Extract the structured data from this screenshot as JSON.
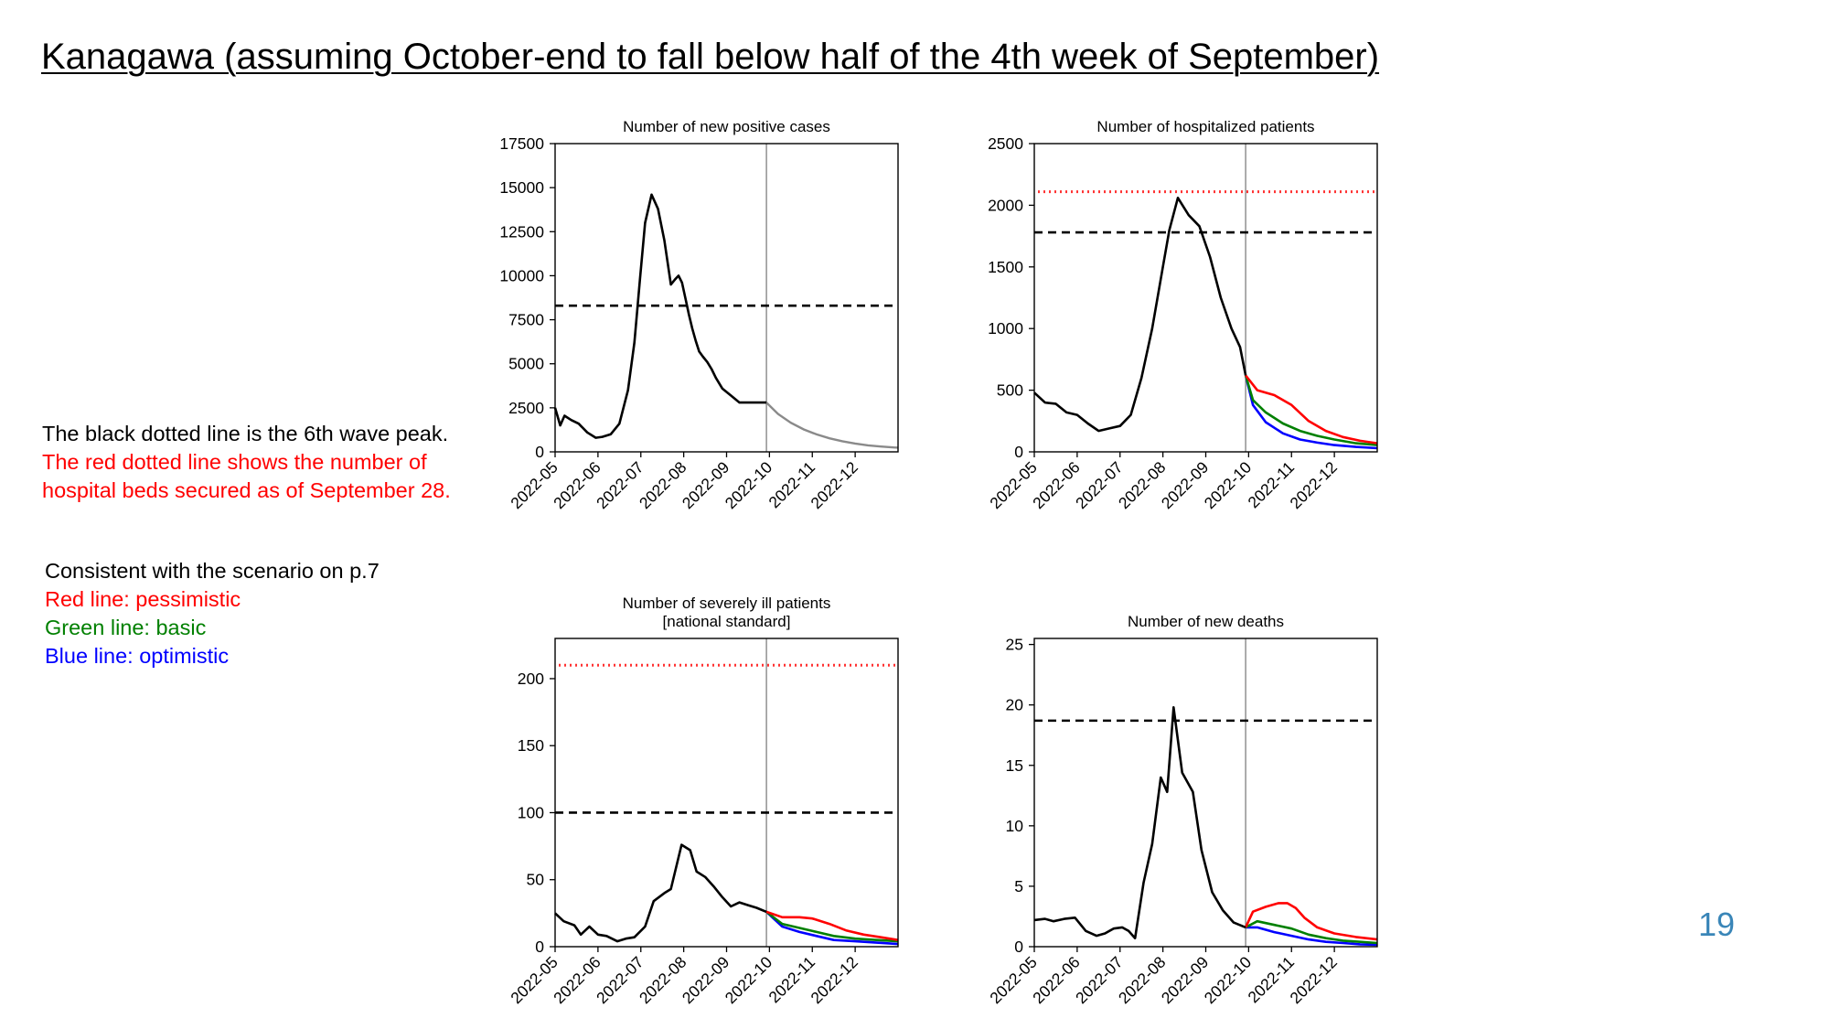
{
  "title": "Kanagawa (assuming October-end to fall below half of the 4th week of September)",
  "notes": [
    {
      "text": "The black dotted line is the 6th wave peak.",
      "color": "#000000"
    },
    {
      "text": "The red dotted line shows the number of",
      "color": "#ff0000"
    },
    {
      "text": "hospital beds secured as of September 28.",
      "color": "#ff0000"
    }
  ],
  "scenario_notes": [
    {
      "text": "Consistent with the scenario on p.7",
      "color": "#000000"
    },
    {
      "text": "Red line: pessimistic",
      "color": "#ff0000"
    },
    {
      "text": "Green line: basic",
      "color": "#008000"
    },
    {
      "text": "Blue line: optimistic",
      "color": "#0000ff"
    }
  ],
  "page_number": "19",
  "colors": {
    "observed": "#000000",
    "projection_single": "#8a8a8a",
    "pessimistic": "#ff0000",
    "basic": "#008000",
    "optimistic": "#0000ff",
    "sixth_wave_peak": "#000000",
    "hospital_beds": "#ff3333",
    "current_date_line": "#808080"
  },
  "chart_data": [
    {
      "id": "new-positive-cases",
      "type": "line",
      "title": [
        "Number of new positive cases"
      ],
      "xlim": [
        0,
        8
      ],
      "x_ticks": [
        "2022-05",
        "2022-06",
        "2022-07",
        "2022-08",
        "2022-09",
        "2022-10",
        "2022-11",
        "2022-12"
      ],
      "ylim": [
        0,
        17500
      ],
      "y_ticks": [
        0,
        2500,
        5000,
        7500,
        10000,
        12500,
        15000,
        17500
      ],
      "vline_x": 4.93,
      "hlines": [
        {
          "y": 8300,
          "style": "dashed",
          "meaning": "6th wave peak"
        }
      ],
      "observed": {
        "x": [
          0,
          0.12,
          0.22,
          0.38,
          0.55,
          0.75,
          0.95,
          1.1,
          1.3,
          1.5,
          1.7,
          1.85,
          1.98,
          2.1,
          2.25,
          2.4,
          2.55,
          2.7,
          2.8,
          2.88,
          2.96,
          3.05,
          3.12,
          3.2,
          3.28,
          3.36,
          3.45,
          3.55,
          3.65,
          3.75,
          3.9,
          4.1,
          4.3,
          4.5,
          4.65,
          4.8,
          4.93
        ],
        "y": [
          2500,
          1500,
          2050,
          1800,
          1600,
          1100,
          800,
          850,
          1000,
          1600,
          3500,
          6200,
          9800,
          13000,
          14600,
          13800,
          12000,
          9500,
          9800,
          10000,
          9600,
          8600,
          7800,
          7000,
          6300,
          5700,
          5400,
          5100,
          4700,
          4200,
          3600,
          3200,
          2800,
          2800,
          2800,
          2800,
          2800
        ]
      },
      "projection": {
        "x": [
          4.93,
          5.2,
          5.5,
          5.8,
          6.1,
          6.4,
          6.7,
          7.0,
          7.3,
          7.6,
          7.9,
          8.0
        ],
        "y": [
          2800,
          2150,
          1650,
          1270,
          990,
          770,
          600,
          470,
          370,
          300,
          250,
          240
        ]
      }
    },
    {
      "id": "hospitalized-patients",
      "type": "line",
      "title": [
        "Number of hospitalized patients"
      ],
      "xlim": [
        0,
        8
      ],
      "x_ticks": [
        "2022-05",
        "2022-06",
        "2022-07",
        "2022-08",
        "2022-09",
        "2022-10",
        "2022-11",
        "2022-12"
      ],
      "ylim": [
        0,
        2500
      ],
      "y_ticks": [
        0,
        500,
        1000,
        1500,
        2000,
        2500
      ],
      "vline_x": 4.93,
      "hlines": [
        {
          "y": 2110,
          "style": "dotted-red",
          "meaning": "hospital beds secured"
        },
        {
          "y": 1780,
          "style": "dashed",
          "meaning": "6th wave peak"
        }
      ],
      "observed": {
        "x": [
          0,
          0.25,
          0.5,
          0.75,
          1.0,
          1.25,
          1.5,
          1.75,
          2.0,
          2.25,
          2.5,
          2.75,
          3.0,
          3.15,
          3.35,
          3.6,
          3.85,
          4.1,
          4.35,
          4.6,
          4.8,
          4.93
        ],
        "y": [
          480,
          400,
          390,
          320,
          300,
          230,
          170,
          190,
          210,
          300,
          600,
          1000,
          1500,
          1800,
          2060,
          1920,
          1830,
          1580,
          1250,
          1000,
          850,
          620
        ]
      },
      "scenarios": [
        {
          "name": "pessimistic",
          "x": [
            4.93,
            5.2,
            5.6,
            6.0,
            6.4,
            6.8,
            7.2,
            7.6,
            8.0
          ],
          "y": [
            620,
            500,
            460,
            380,
            250,
            170,
            120,
            90,
            70
          ]
        },
        {
          "name": "basic",
          "x": [
            4.93,
            5.1,
            5.4,
            5.8,
            6.2,
            6.6,
            7.0,
            7.5,
            8.0
          ],
          "y": [
            620,
            420,
            320,
            230,
            170,
            130,
            100,
            70,
            55
          ]
        },
        {
          "name": "optimistic",
          "x": [
            4.93,
            5.1,
            5.4,
            5.8,
            6.2,
            6.6,
            7.0,
            7.5,
            8.0
          ],
          "y": [
            620,
            380,
            240,
            150,
            100,
            75,
            55,
            40,
            30
          ]
        }
      ]
    },
    {
      "id": "severely-ill-patients",
      "type": "line",
      "title": [
        "Number of severely ill patients",
        "[national standard]"
      ],
      "xlim": [
        0,
        8
      ],
      "x_ticks": [
        "2022-05",
        "2022-06",
        "2022-07",
        "2022-08",
        "2022-09",
        "2022-10",
        "2022-11",
        "2022-12"
      ],
      "ylim": [
        0,
        230
      ],
      "y_ticks": [
        0,
        50,
        100,
        150,
        200
      ],
      "vline_x": 4.93,
      "hlines": [
        {
          "y": 210,
          "style": "dotted-red",
          "meaning": "hospital beds secured"
        },
        {
          "y": 100,
          "style": "dashed",
          "meaning": "6th wave peak"
        }
      ],
      "observed": {
        "x": [
          0,
          0.2,
          0.45,
          0.6,
          0.8,
          1.0,
          1.2,
          1.45,
          1.65,
          1.85,
          2.1,
          2.3,
          2.55,
          2.7,
          2.95,
          3.15,
          3.3,
          3.5,
          3.7,
          3.9,
          4.1,
          4.3,
          4.5,
          4.7,
          4.93
        ],
        "y": [
          25,
          19,
          16,
          9,
          15,
          9,
          8,
          4,
          6,
          7,
          15,
          34,
          40,
          43,
          76,
          72,
          56,
          52,
          45,
          37,
          30,
          33,
          31,
          29,
          26
        ]
      },
      "scenarios": [
        {
          "name": "pessimistic",
          "x": [
            4.93,
            5.3,
            5.7,
            6.0,
            6.4,
            6.8,
            7.2,
            7.6,
            8.0
          ],
          "y": [
            26,
            22,
            22,
            21,
            17,
            12,
            9,
            7,
            5
          ]
        },
        {
          "name": "basic",
          "x": [
            4.93,
            5.3,
            5.7,
            6.1,
            6.5,
            7.0,
            7.5,
            8.0
          ],
          "y": [
            26,
            17,
            14,
            11,
            8,
            6,
            5,
            4
          ]
        },
        {
          "name": "optimistic",
          "x": [
            4.93,
            5.3,
            5.7,
            6.1,
            6.5,
            7.0,
            7.5,
            8.0
          ],
          "y": [
            26,
            15,
            11,
            8,
            5,
            4,
            3,
            2
          ]
        }
      ]
    },
    {
      "id": "new-deaths",
      "type": "line",
      "title": [
        "Number of new deaths"
      ],
      "xlim": [
        0,
        8
      ],
      "x_ticks": [
        "2022-05",
        "2022-06",
        "2022-07",
        "2022-08",
        "2022-09",
        "2022-10",
        "2022-11",
        "2022-12"
      ],
      "ylim": [
        0,
        25.5
      ],
      "y_ticks": [
        0,
        5,
        10,
        15,
        20,
        25
      ],
      "vline_x": 4.93,
      "hlines": [
        {
          "y": 18.7,
          "style": "dashed",
          "meaning": "6th wave peak"
        }
      ],
      "observed": {
        "x": [
          0,
          0.25,
          0.45,
          0.7,
          0.95,
          1.2,
          1.45,
          1.65,
          1.85,
          2.05,
          2.2,
          2.35,
          2.55,
          2.75,
          2.95,
          3.1,
          3.25,
          3.45,
          3.7,
          3.9,
          4.15,
          4.4,
          4.65,
          4.93
        ],
        "y": [
          2.2,
          2.3,
          2.1,
          2.3,
          2.4,
          1.3,
          0.9,
          1.1,
          1.5,
          1.6,
          1.3,
          0.7,
          5.3,
          8.5,
          14.0,
          12.8,
          19.8,
          14.4,
          12.8,
          8.0,
          4.5,
          3.0,
          2.0,
          1.6
        ]
      },
      "scenarios": [
        {
          "name": "pessimistic",
          "x": [
            4.93,
            5.1,
            5.4,
            5.7,
            5.9,
            6.1,
            6.3,
            6.6,
            7.0,
            7.5,
            8.0
          ],
          "y": [
            1.6,
            2.9,
            3.3,
            3.6,
            3.6,
            3.2,
            2.4,
            1.6,
            1.1,
            0.8,
            0.6
          ]
        },
        {
          "name": "basic",
          "x": [
            4.93,
            5.2,
            5.6,
            6.0,
            6.4,
            6.8,
            7.2,
            7.6,
            8.0
          ],
          "y": [
            1.6,
            2.1,
            1.8,
            1.5,
            1.0,
            0.7,
            0.5,
            0.4,
            0.3
          ]
        },
        {
          "name": "optimistic",
          "x": [
            4.93,
            5.2,
            5.6,
            6.0,
            6.4,
            6.8,
            7.2,
            7.6,
            8.0
          ],
          "y": [
            1.6,
            1.6,
            1.2,
            0.9,
            0.6,
            0.4,
            0.3,
            0.2,
            0.15
          ]
        }
      ]
    }
  ]
}
